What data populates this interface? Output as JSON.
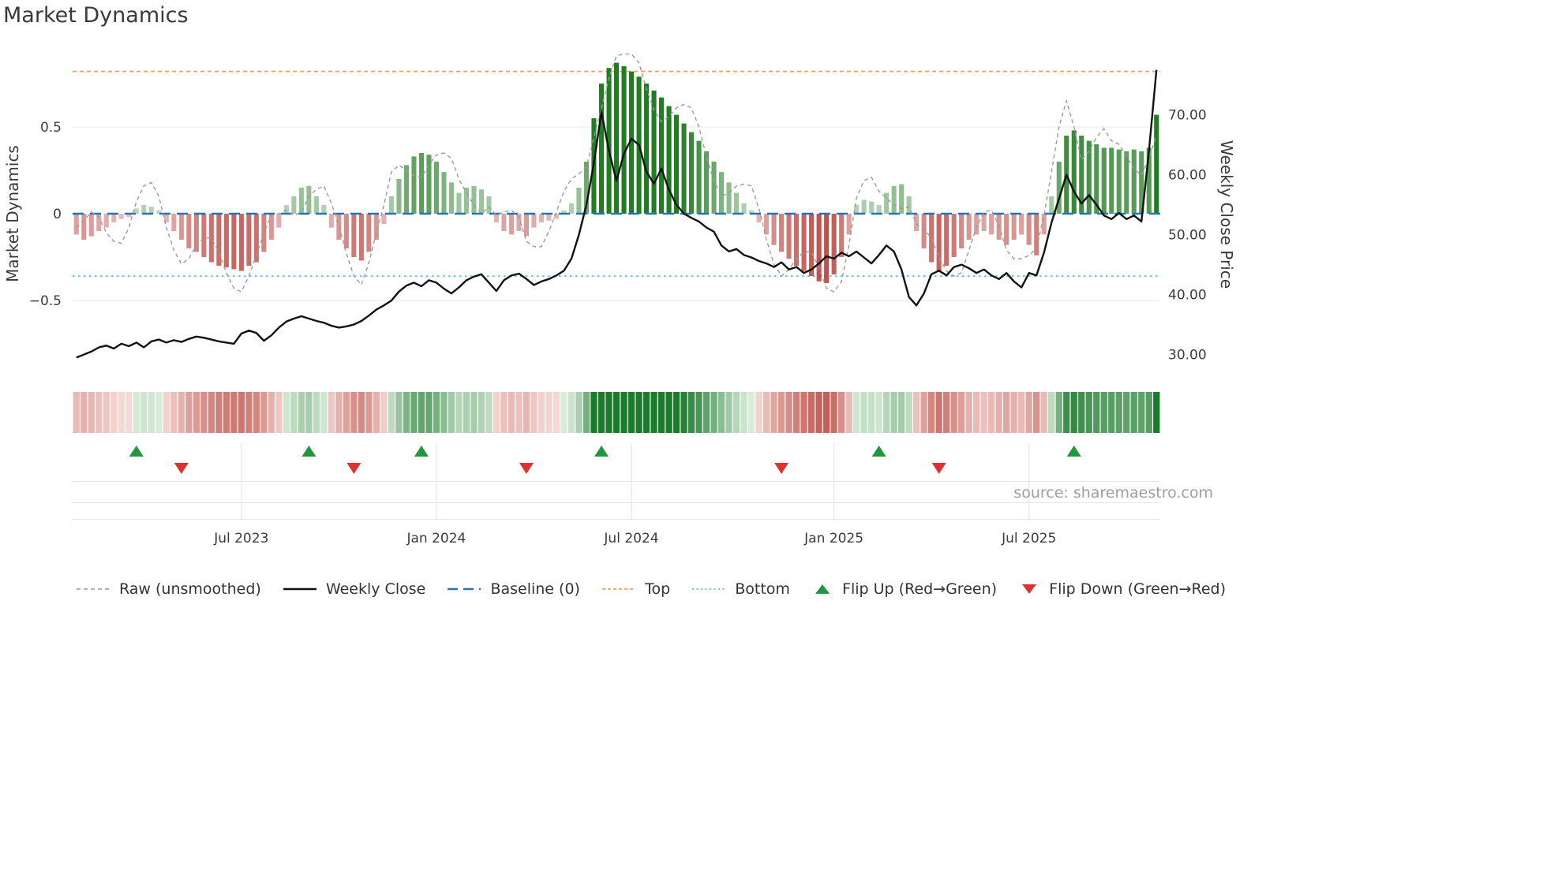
{
  "title": "Market Dynamics",
  "left_axis_label": "Market Dynamics",
  "right_axis_label": "Weekly Close Price",
  "source": "source: sharemaestro.com",
  "legend": [
    {
      "label": "Raw (unsmoothed)",
      "color": "#999999"
    },
    {
      "label": "Weekly Close",
      "color": "#111111"
    },
    {
      "label": "Baseline (0)",
      "color": "#1f77b4"
    },
    {
      "label": "Top",
      "color": "#f0a35e"
    },
    {
      "label": "Bottom",
      "color": "#4fc3e8"
    },
    {
      "label": "Flip Up (Red→Green)",
      "color": "#21963c"
    },
    {
      "label": "Flip Down (Green→Red)",
      "color": "#e03131"
    }
  ],
  "chart_data": {
    "type": "mixed",
    "title": "Market Dynamics",
    "frequency": "weekly",
    "start_date": "2023-02-05",
    "n_points": 145,
    "x_tick_weeks": [
      22,
      48,
      74,
      101,
      127
    ],
    "x_tick_labels": [
      "Jul 2023",
      "Jan 2024",
      "Jul 2024",
      "Jan 2025",
      "Jul 2025"
    ],
    "left_range": [
      -0.95,
      0.95
    ],
    "right_range": [
      26,
      81
    ],
    "left_ticks": [
      {
        "v": 0.5,
        "label": "0.5"
      },
      {
        "v": 0,
        "label": "0"
      },
      {
        "v": -0.5,
        "label": "−0.5"
      }
    ],
    "right_ticks": [
      {
        "v": 70,
        "label": "70.00"
      },
      {
        "v": 60,
        "label": "60.00"
      },
      {
        "v": 50,
        "label": "50.00"
      },
      {
        "v": 40,
        "label": "40.00"
      },
      {
        "v": 30,
        "label": "30.00"
      }
    ],
    "series": [
      {
        "name": "Oscillator",
        "type": "bar",
        "axis": "left",
        "positive_color": "#227d22",
        "negative_color": "#b02620",
        "values": [
          -0.12,
          -0.15,
          -0.13,
          -0.1,
          -0.08,
          -0.05,
          -0.03,
          -0.02,
          0.03,
          0.05,
          0.04,
          0.02,
          -0.05,
          -0.1,
          -0.15,
          -0.2,
          -0.22,
          -0.25,
          -0.28,
          -0.3,
          -0.31,
          -0.32,
          -0.33,
          -0.3,
          -0.28,
          -0.22,
          -0.15,
          -0.08,
          0.05,
          0.1,
          0.15,
          0.16,
          0.1,
          0.05,
          -0.08,
          -0.15,
          -0.2,
          -0.25,
          -0.27,
          -0.22,
          -0.15,
          -0.06,
          0.1,
          0.2,
          0.28,
          0.33,
          0.35,
          0.34,
          0.3,
          0.24,
          0.18,
          0.12,
          0.15,
          0.16,
          0.14,
          0.1,
          -0.05,
          -0.1,
          -0.12,
          -0.1,
          -0.13,
          -0.08,
          -0.05,
          -0.04,
          -0.03,
          0.02,
          0.06,
          0.15,
          0.3,
          0.55,
          0.75,
          0.84,
          0.87,
          0.85,
          0.82,
          0.79,
          0.75,
          0.71,
          0.67,
          0.62,
          0.57,
          0.52,
          0.47,
          0.42,
          0.36,
          0.3,
          0.24,
          0.18,
          0.12,
          0.06,
          0.02,
          -0.05,
          -0.12,
          -0.18,
          -0.22,
          -0.26,
          -0.3,
          -0.33,
          -0.36,
          -0.39,
          -0.4,
          -0.35,
          -0.25,
          -0.12,
          0.05,
          0.08,
          0.07,
          0.05,
          0.12,
          0.16,
          0.17,
          0.1,
          -0.1,
          -0.2,
          -0.28,
          -0.33,
          -0.3,
          -0.25,
          -0.2,
          -0.15,
          -0.12,
          -0.1,
          -0.12,
          -0.15,
          -0.18,
          -0.15,
          -0.12,
          -0.18,
          -0.24,
          -0.12,
          0.1,
          0.3,
          0.45,
          0.48,
          0.45,
          0.42,
          0.4,
          0.38,
          0.38,
          0.37,
          0.36,
          0.37,
          0.36,
          0.38,
          0.57
        ]
      },
      {
        "name": "Raw (unsmoothed)",
        "type": "line",
        "style": "dashed",
        "axis": "left",
        "color": "#9b9b9b",
        "values": [
          -0.08,
          -0.04,
          0.01,
          -0.02,
          -0.11,
          -0.16,
          -0.17,
          -0.08,
          0.07,
          0.16,
          0.18,
          0.1,
          -0.08,
          -0.21,
          -0.29,
          -0.26,
          -0.18,
          -0.14,
          -0.14,
          -0.22,
          -0.34,
          -0.43,
          -0.45,
          -0.36,
          -0.24,
          -0.11,
          -0.01,
          0.0,
          0.02,
          -0.01,
          0.01,
          0.1,
          0.14,
          0.16,
          0.06,
          -0.07,
          -0.23,
          -0.36,
          -0.41,
          -0.28,
          -0.11,
          0.05,
          0.24,
          0.28,
          0.25,
          0.22,
          0.21,
          0.28,
          0.34,
          0.35,
          0.32,
          0.2,
          0.12,
          0.05,
          0.0,
          0.04,
          -0.01,
          0.01,
          0.02,
          -0.02,
          -0.16,
          -0.19,
          -0.19,
          -0.1,
          0.01,
          0.13,
          0.2,
          0.23,
          0.27,
          0.44,
          0.61,
          0.78,
          0.91,
          0.92,
          0.92,
          0.87,
          0.72,
          0.6,
          0.53,
          0.56,
          0.61,
          0.63,
          0.61,
          0.5,
          0.33,
          0.19,
          0.1,
          0.12,
          0.16,
          0.17,
          0.16,
          0.03,
          -0.15,
          -0.29,
          -0.36,
          -0.32,
          -0.26,
          -0.22,
          -0.22,
          -0.31,
          -0.43,
          -0.45,
          -0.39,
          -0.18,
          0.09,
          0.19,
          0.21,
          0.13,
          0.09,
          0.05,
          0.03,
          0.04,
          -0.06,
          -0.09,
          -0.14,
          -0.25,
          -0.33,
          -0.36,
          -0.34,
          -0.21,
          -0.08,
          0.01,
          0.02,
          -0.07,
          -0.21,
          -0.26,
          -0.26,
          -0.24,
          -0.2,
          -0.01,
          0.24,
          0.5,
          0.65,
          0.5,
          0.31,
          0.36,
          0.44,
          0.49,
          0.42,
          0.4,
          0.33,
          0.26,
          0.22,
          0.32,
          0.45
        ]
      },
      {
        "name": "Weekly Close",
        "type": "line",
        "axis": "right",
        "color": "#121212",
        "values": [
          29.5,
          30.0,
          30.5,
          31.2,
          31.5,
          31.0,
          31.8,
          31.4,
          32.0,
          31.2,
          32.2,
          32.5,
          32.0,
          32.4,
          32.1,
          32.6,
          33.0,
          32.8,
          32.5,
          32.2,
          32.0,
          31.8,
          33.5,
          34.0,
          33.6,
          32.3,
          33.2,
          34.5,
          35.5,
          36.0,
          36.4,
          36.0,
          35.6,
          35.3,
          34.8,
          34.5,
          34.7,
          35.0,
          35.6,
          36.5,
          37.5,
          38.2,
          39.0,
          40.5,
          41.5,
          42.0,
          41.4,
          42.4,
          42.0,
          41.0,
          40.2,
          41.2,
          42.4,
          43.0,
          43.4,
          42.0,
          40.6,
          42.4,
          43.2,
          43.5,
          42.6,
          41.6,
          42.2,
          42.6,
          43.2,
          44.0,
          46.0,
          50.0,
          55.0,
          62.0,
          70.5,
          64.0,
          59.0,
          63.5,
          66.0,
          65.0,
          60.5,
          58.5,
          61.0,
          57.5,
          55.0,
          53.5,
          52.8,
          52.2,
          51.2,
          50.5,
          48.2,
          47.2,
          47.6,
          46.6,
          46.2,
          45.6,
          45.2,
          44.6,
          45.4,
          44.2,
          44.6,
          43.6,
          44.2,
          45.2,
          46.4,
          46.0,
          47.0,
          46.4,
          47.2,
          46.2,
          45.2,
          46.6,
          48.2,
          47.2,
          44.2,
          39.6,
          38.2,
          40.2,
          43.4,
          44.0,
          43.2,
          44.6,
          45.0,
          44.4,
          43.6,
          44.2,
          43.2,
          42.6,
          43.6,
          42.2,
          41.2,
          43.6,
          43.2,
          47.0,
          52.0,
          56.0,
          60.0,
          57.2,
          55.2,
          56.6,
          55.0,
          53.2,
          52.6,
          53.6,
          52.6,
          53.2,
          52.2,
          64.0,
          77.5
        ]
      }
    ],
    "reference_lines": [
      {
        "name": "Baseline (0)",
        "axis": "left",
        "value": 0,
        "color": "#1f77b4",
        "style": "dashed"
      },
      {
        "name": "Top",
        "axis": "left",
        "value": 0.82,
        "color": "#f0a35e",
        "style": "dashed"
      },
      {
        "name": "Bottom",
        "axis": "left",
        "value": -0.36,
        "color": "#4fc3e8",
        "style": "dotted"
      }
    ],
    "heatmap": {
      "source_series": "Oscillator",
      "positive_color": "#1b7a2c",
      "negative_color": "#b22d26"
    },
    "flip_up_weeks": [
      8,
      31,
      46,
      70,
      107,
      133
    ],
    "flip_down_weeks": [
      14,
      37,
      60,
      94,
      115
    ],
    "flip_up_color": "#21963c",
    "flip_down_color": "#e03131",
    "legend_position": "bottom",
    "grid": "minimal"
  }
}
